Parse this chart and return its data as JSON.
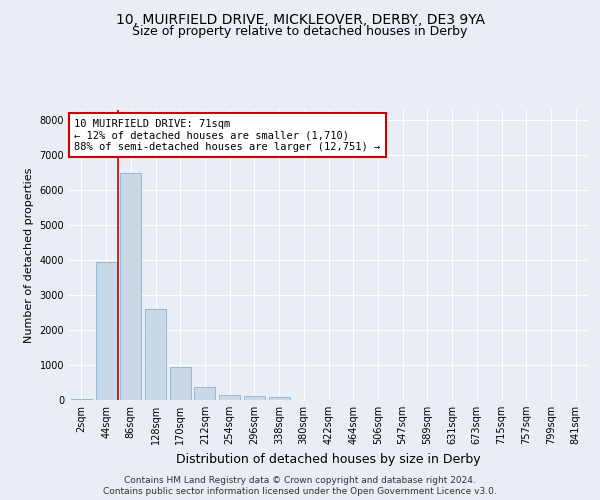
{
  "title_line1": "10, MUIRFIELD DRIVE, MICKLEOVER, DERBY, DE3 9YA",
  "title_line2": "Size of property relative to detached houses in Derby",
  "xlabel": "Distribution of detached houses by size in Derby",
  "ylabel": "Number of detached properties",
  "categories": [
    "2sqm",
    "44sqm",
    "86sqm",
    "128sqm",
    "170sqm",
    "212sqm",
    "254sqm",
    "296sqm",
    "338sqm",
    "380sqm",
    "422sqm",
    "464sqm",
    "506sqm",
    "547sqm",
    "589sqm",
    "631sqm",
    "673sqm",
    "715sqm",
    "757sqm",
    "799sqm",
    "841sqm"
  ],
  "values": [
    30,
    3950,
    6500,
    2600,
    950,
    380,
    150,
    120,
    80,
    10,
    0,
    0,
    0,
    0,
    0,
    0,
    0,
    0,
    0,
    0,
    0
  ],
  "bar_color": "#c9d9e8",
  "bar_edge_color": "#7fa8c9",
  "vline_color": "#cc0000",
  "annotation_text": "10 MUIRFIELD DRIVE: 71sqm\n← 12% of detached houses are smaller (1,710)\n88% of semi-detached houses are larger (12,751) →",
  "annotation_box_color": "white",
  "annotation_box_edge_color": "#cc0000",
  "ylim": [
    0,
    8300
  ],
  "yticks": [
    0,
    1000,
    2000,
    3000,
    4000,
    5000,
    6000,
    7000,
    8000
  ],
  "footer_line1": "Contains HM Land Registry data © Crown copyright and database right 2024.",
  "footer_line2": "Contains public sector information licensed under the Open Government Licence v3.0.",
  "background_color": "#e8eef4",
  "plot_bg_color": "#e8eef4",
  "grid_color": "white",
  "title_fontsize": 10,
  "subtitle_fontsize": 9,
  "tick_fontsize": 7,
  "ylabel_fontsize": 8,
  "xlabel_fontsize": 9,
  "footer_fontsize": 6.5,
  "annot_fontsize": 7.5
}
